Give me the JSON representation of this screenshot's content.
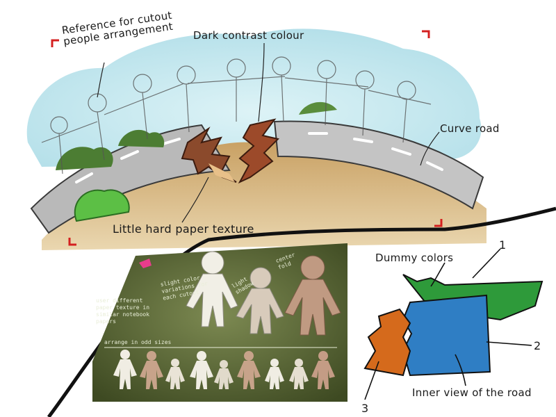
{
  "top_sketch": {
    "labels": {
      "cutout_reference": "Reference for cutout people arrangement",
      "contrast": "Dark contrast colour",
      "curve_road": "Curve road",
      "paper_texture": "Little hard paper texture"
    }
  },
  "paper_panel": {
    "notes": {
      "color_variation": "slight color variations for each cutout",
      "paper_textures": "user different paper texture in similar notebook papers",
      "odd_sizes": "arrange in odd sizes",
      "center_fold": "center fold",
      "shadow": "light shadow"
    }
  },
  "road_diagram": {
    "labels": {
      "dummy_colors": "Dummy colors",
      "inner_view": "Inner view of the road"
    },
    "numbers": [
      "1",
      "2",
      "3"
    ],
    "colors": {
      "green": "#2e9a3a",
      "blue": "#2f7ec4",
      "orange": "#d56a1c"
    }
  }
}
